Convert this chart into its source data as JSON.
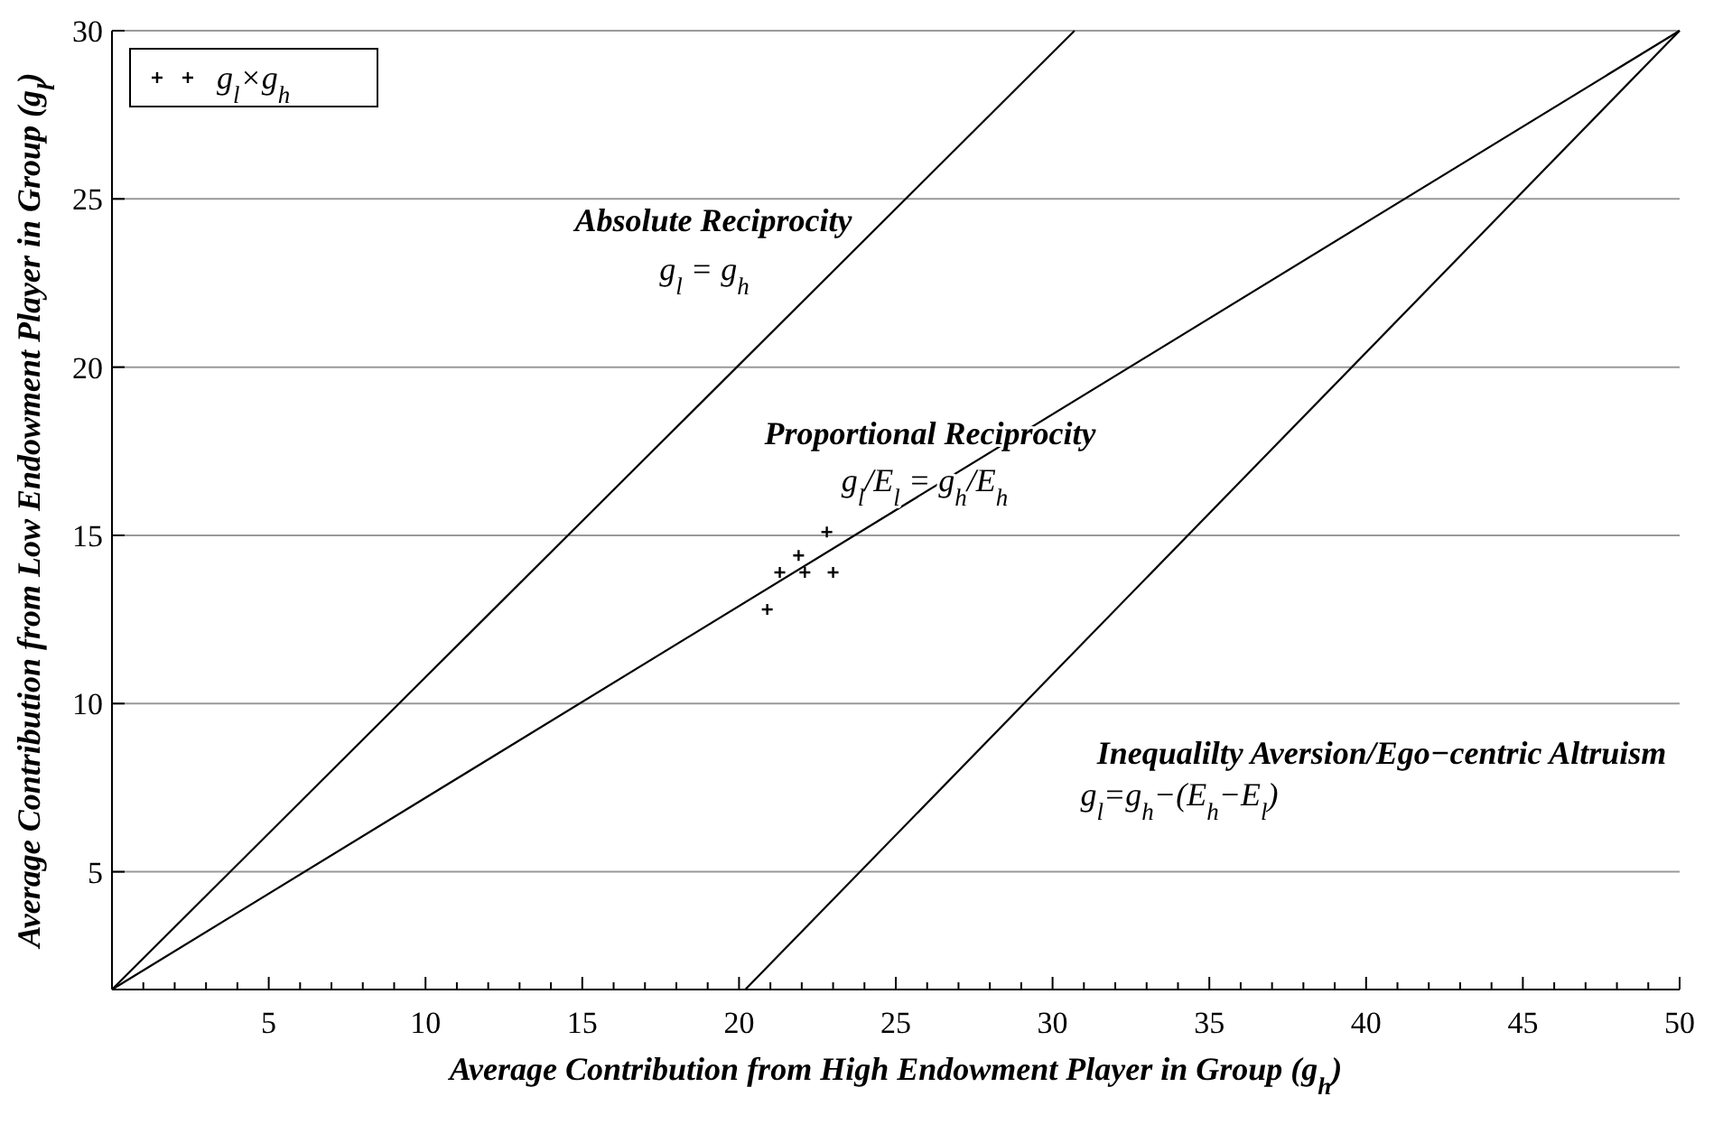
{
  "chart_data": {
    "type": "scatter",
    "xlabel": "Average Contribution from High Endowment Player in Group (g$_{h}$)",
    "ylabel": "Average Contribution from Low Endowment Player in Group (g$_{l}$)",
    "xlim": [
      0,
      50
    ],
    "ylim": [
      1.5,
      30
    ],
    "xticks": [
      {
        "value": 1,
        "label": null
      },
      {
        "value": 2,
        "label": null
      },
      {
        "value": 3,
        "label": null
      },
      {
        "value": 4,
        "label": null
      },
      5,
      {
        "value": 6,
        "label": null
      },
      {
        "value": 7,
        "label": null
      },
      {
        "value": 8,
        "label": null
      },
      {
        "value": 9,
        "label": null
      },
      10,
      {
        "value": 11,
        "label": null
      },
      {
        "value": 12,
        "label": null
      },
      {
        "value": 13,
        "label": null
      },
      {
        "value": 14,
        "label": null
      },
      15,
      {
        "value": 16,
        "label": null
      },
      {
        "value": 17,
        "label": null
      },
      {
        "value": 18,
        "label": null
      },
      {
        "value": 19,
        "label": null
      },
      20,
      {
        "value": 21,
        "label": null
      },
      {
        "value": 22,
        "label": null
      },
      {
        "value": 23,
        "label": null
      },
      {
        "value": 24,
        "label": null
      },
      25,
      {
        "value": 26,
        "label": null
      },
      {
        "value": 27,
        "label": null
      },
      {
        "value": 28,
        "label": null
      },
      {
        "value": 29,
        "label": null
      },
      30,
      {
        "value": 31,
        "label": null
      },
      {
        "value": 32,
        "label": null
      },
      {
        "value": 33,
        "label": null
      },
      {
        "value": 34,
        "label": null
      },
      35,
      {
        "value": 36,
        "label": null
      },
      {
        "value": 37,
        "label": null
      },
      {
        "value": 38,
        "label": null
      },
      {
        "value": 39,
        "label": null
      },
      40,
      {
        "value": 41,
        "label": null
      },
      {
        "value": 42,
        "label": null
      },
      {
        "value": 43,
        "label": null
      },
      {
        "value": 44,
        "label": null
      },
      45,
      {
        "value": 46,
        "label": null
      },
      {
        "value": 47,
        "label": null
      },
      {
        "value": 48,
        "label": null
      },
      {
        "value": 49,
        "label": null
      },
      50
    ],
    "yticks": [
      5,
      10,
      15,
      20,
      25,
      30
    ],
    "grid": "y",
    "legend": "top left",
    "marker": "cross",
    "series": [
      {
        "name": "g$_{l}$×g$_{h}$",
        "color": "#000000",
        "x": [
          22.8,
          21.9,
          21.3,
          22.1,
          23.0,
          20.9
        ],
        "values": [
          15.1,
          14.4,
          13.9,
          13.9,
          13.9,
          12.8
        ]
      },
      {
        "type": "line",
        "color": "#000000",
        "marker": "none",
        "x": [
          0,
          30.7
        ],
        "values": [
          1.5,
          30
        ]
      },
      {
        "type": "line",
        "color": "#000000",
        "marker": "none",
        "x": [
          0,
          50
        ],
        "values": [
          1.5,
          30
        ]
      },
      {
        "type": "line",
        "color": "#000000",
        "marker": "none",
        "x": [
          20.2,
          50
        ],
        "values": [
          1.5,
          30
        ]
      }
    ],
    "annotations": [
      "Absolute Reciprocity",
      "g$_{l}$ = g$_{h}$",
      "Proportional Reciprocity",
      "g$_{l}$/E$_{l}$ = g$_{h}$/E$_{h}$",
      "Inequalilty Aversion/Ego−centric Altruism",
      "g$_{l}$=g$_{h}$−(E$_{h}$−E$_{l}$)"
    ]
  }
}
